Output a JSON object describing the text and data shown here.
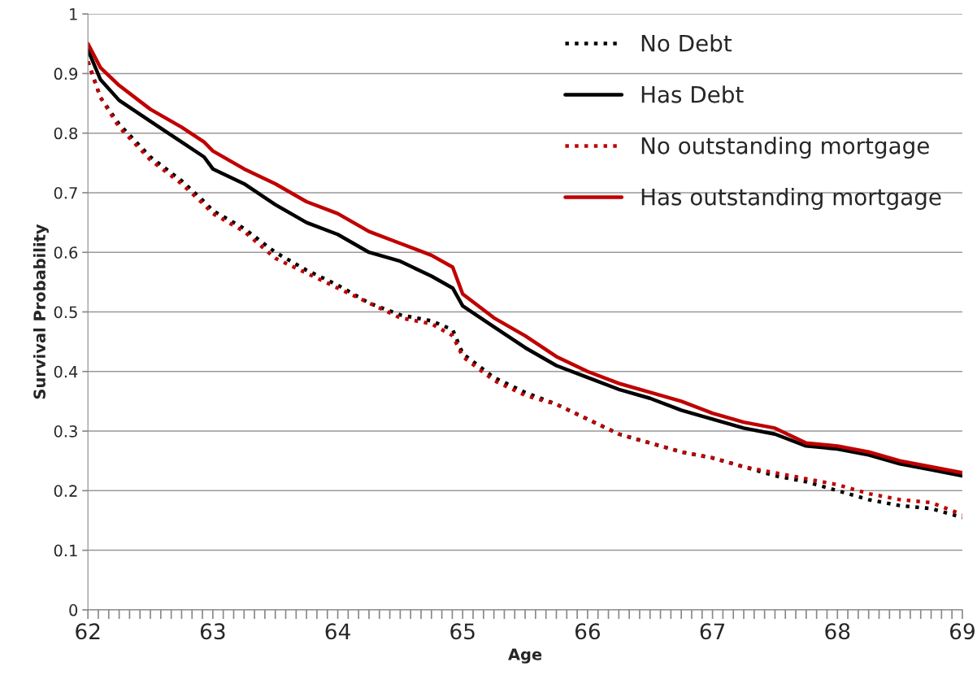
{
  "chart_data": {
    "type": "line",
    "xlabel": "Age",
    "ylabel": "Survival Probability",
    "x": [
      62,
      62.1,
      62.25,
      62.5,
      62.75,
      62.93,
      63.0,
      63.25,
      63.5,
      63.75,
      64.0,
      64.25,
      64.5,
      64.75,
      64.92,
      65.0,
      65.25,
      65.5,
      65.75,
      66.0,
      66.25,
      66.5,
      66.75,
      67.0,
      67.25,
      67.5,
      67.75,
      68.0,
      68.25,
      68.5,
      68.75,
      69.0
    ],
    "series": [
      {
        "name": "No Debt",
        "color": "#000000",
        "line_style": "dotted",
        "values": [
          0.92,
          0.86,
          0.815,
          0.76,
          0.72,
          0.685,
          0.67,
          0.64,
          0.6,
          0.57,
          0.545,
          0.515,
          0.495,
          0.485,
          0.47,
          0.43,
          0.39,
          0.365,
          0.345,
          0.32,
          0.295,
          0.28,
          0.265,
          0.255,
          0.24,
          0.225,
          0.215,
          0.2,
          0.185,
          0.175,
          0.17,
          0.155
        ]
      },
      {
        "name": "Has Debt",
        "color": "#000000",
        "line_style": "solid",
        "values": [
          0.94,
          0.89,
          0.855,
          0.82,
          0.785,
          0.76,
          0.74,
          0.715,
          0.68,
          0.65,
          0.63,
          0.6,
          0.585,
          0.56,
          0.54,
          0.51,
          0.475,
          0.44,
          0.41,
          0.39,
          0.37,
          0.355,
          0.335,
          0.32,
          0.305,
          0.295,
          0.275,
          0.27,
          0.26,
          0.245,
          0.235,
          0.225
        ]
      },
      {
        "name": "No outstanding mortgage",
        "color": "#c00000",
        "line_style": "dotted",
        "values": [
          0.92,
          0.86,
          0.81,
          0.755,
          0.715,
          0.68,
          0.665,
          0.635,
          0.59,
          0.565,
          0.54,
          0.515,
          0.49,
          0.48,
          0.46,
          0.425,
          0.385,
          0.36,
          0.345,
          0.32,
          0.295,
          0.28,
          0.265,
          0.255,
          0.24,
          0.23,
          0.22,
          0.21,
          0.195,
          0.185,
          0.18,
          0.16
        ]
      },
      {
        "name": "Has outstanding mortgage",
        "color": "#c00000",
        "line_style": "solid",
        "values": [
          0.95,
          0.91,
          0.88,
          0.84,
          0.81,
          0.785,
          0.77,
          0.74,
          0.715,
          0.685,
          0.665,
          0.635,
          0.615,
          0.595,
          0.575,
          0.53,
          0.49,
          0.46,
          0.425,
          0.4,
          0.38,
          0.365,
          0.35,
          0.33,
          0.315,
          0.305,
          0.28,
          0.275,
          0.265,
          0.25,
          0.24,
          0.23
        ]
      }
    ],
    "xlim": [
      62,
      69
    ],
    "ylim": [
      0,
      1
    ],
    "xticks": [
      62,
      {
        "value": 62.0833,
        "label": null
      },
      {
        "value": 62.1667,
        "label": null
      },
      {
        "value": 62.25,
        "label": null
      },
      {
        "value": 62.3333,
        "label": null
      },
      {
        "value": 62.4167,
        "label": null
      },
      {
        "value": 62.5,
        "label": null
      },
      {
        "value": 62.5833,
        "label": null
      },
      {
        "value": 62.6667,
        "label": null
      },
      {
        "value": 62.75,
        "label": null
      },
      {
        "value": 62.8333,
        "label": null
      },
      {
        "value": 62.9167,
        "label": null
      },
      63,
      {
        "value": 63.0833,
        "label": null
      },
      {
        "value": 63.1667,
        "label": null
      },
      {
        "value": 63.25,
        "label": null
      },
      {
        "value": 63.3333,
        "label": null
      },
      {
        "value": 63.4167,
        "label": null
      },
      {
        "value": 63.5,
        "label": null
      },
      {
        "value": 63.5833,
        "label": null
      },
      {
        "value": 63.6667,
        "label": null
      },
      {
        "value": 63.75,
        "label": null
      },
      {
        "value": 63.8333,
        "label": null
      },
      {
        "value": 63.9167,
        "label": null
      },
      64,
      {
        "value": 64.0833,
        "label": null
      },
      {
        "value": 64.1667,
        "label": null
      },
      {
        "value": 64.25,
        "label": null
      },
      {
        "value": 64.3333,
        "label": null
      },
      {
        "value": 64.4167,
        "label": null
      },
      {
        "value": 64.5,
        "label": null
      },
      {
        "value": 64.5833,
        "label": null
      },
      {
        "value": 64.6667,
        "label": null
      },
      {
        "value": 64.75,
        "label": null
      },
      {
        "value": 64.8333,
        "label": null
      },
      {
        "value": 64.9167,
        "label": null
      },
      65,
      {
        "value": 65.0833,
        "label": null
      },
      {
        "value": 65.1667,
        "label": null
      },
      {
        "value": 65.25,
        "label": null
      },
      {
        "value": 65.3333,
        "label": null
      },
      {
        "value": 65.4167,
        "label": null
      },
      {
        "value": 65.5,
        "label": null
      },
      {
        "value": 65.5833,
        "label": null
      },
      {
        "value": 65.6667,
        "label": null
      },
      {
        "value": 65.75,
        "label": null
      },
      {
        "value": 65.8333,
        "label": null
      },
      {
        "value": 65.9167,
        "label": null
      },
      66,
      {
        "value": 66.0833,
        "label": null
      },
      {
        "value": 66.1667,
        "label": null
      },
      {
        "value": 66.25,
        "label": null
      },
      {
        "value": 66.3333,
        "label": null
      },
      {
        "value": 66.4167,
        "label": null
      },
      {
        "value": 66.5,
        "label": null
      },
      {
        "value": 66.5833,
        "label": null
      },
      {
        "value": 66.6667,
        "label": null
      },
      {
        "value": 66.75,
        "label": null
      },
      {
        "value": 66.8333,
        "label": null
      },
      {
        "value": 66.9167,
        "label": null
      },
      67,
      {
        "value": 67.0833,
        "label": null
      },
      {
        "value": 67.1667,
        "label": null
      },
      {
        "value": 67.25,
        "label": null
      },
      {
        "value": 67.3333,
        "label": null
      },
      {
        "value": 67.4167,
        "label": null
      },
      {
        "value": 67.5,
        "label": null
      },
      {
        "value": 67.5833,
        "label": null
      },
      {
        "value": 67.6667,
        "label": null
      },
      {
        "value": 67.75,
        "label": null
      },
      {
        "value": 67.8333,
        "label": null
      },
      {
        "value": 67.9167,
        "label": null
      },
      68,
      {
        "value": 68.0833,
        "label": null
      },
      {
        "value": 68.1667,
        "label": null
      },
      {
        "value": 68.25,
        "label": null
      },
      {
        "value": 68.3333,
        "label": null
      },
      {
        "value": 68.4167,
        "label": null
      },
      {
        "value": 68.5,
        "label": null
      },
      {
        "value": 68.5833,
        "label": null
      },
      {
        "value": 68.6667,
        "label": null
      },
      {
        "value": 68.75,
        "label": null
      },
      {
        "value": 68.8333,
        "label": null
      },
      {
        "value": 68.9167,
        "label": null
      },
      69
    ],
    "yticks": [
      0,
      0.1,
      0.2,
      0.3,
      0.4,
      0.5,
      0.6,
      0.7,
      0.8,
      0.9,
      1
    ],
    "grid": "y",
    "legend": "top right",
    "marker": "none"
  }
}
